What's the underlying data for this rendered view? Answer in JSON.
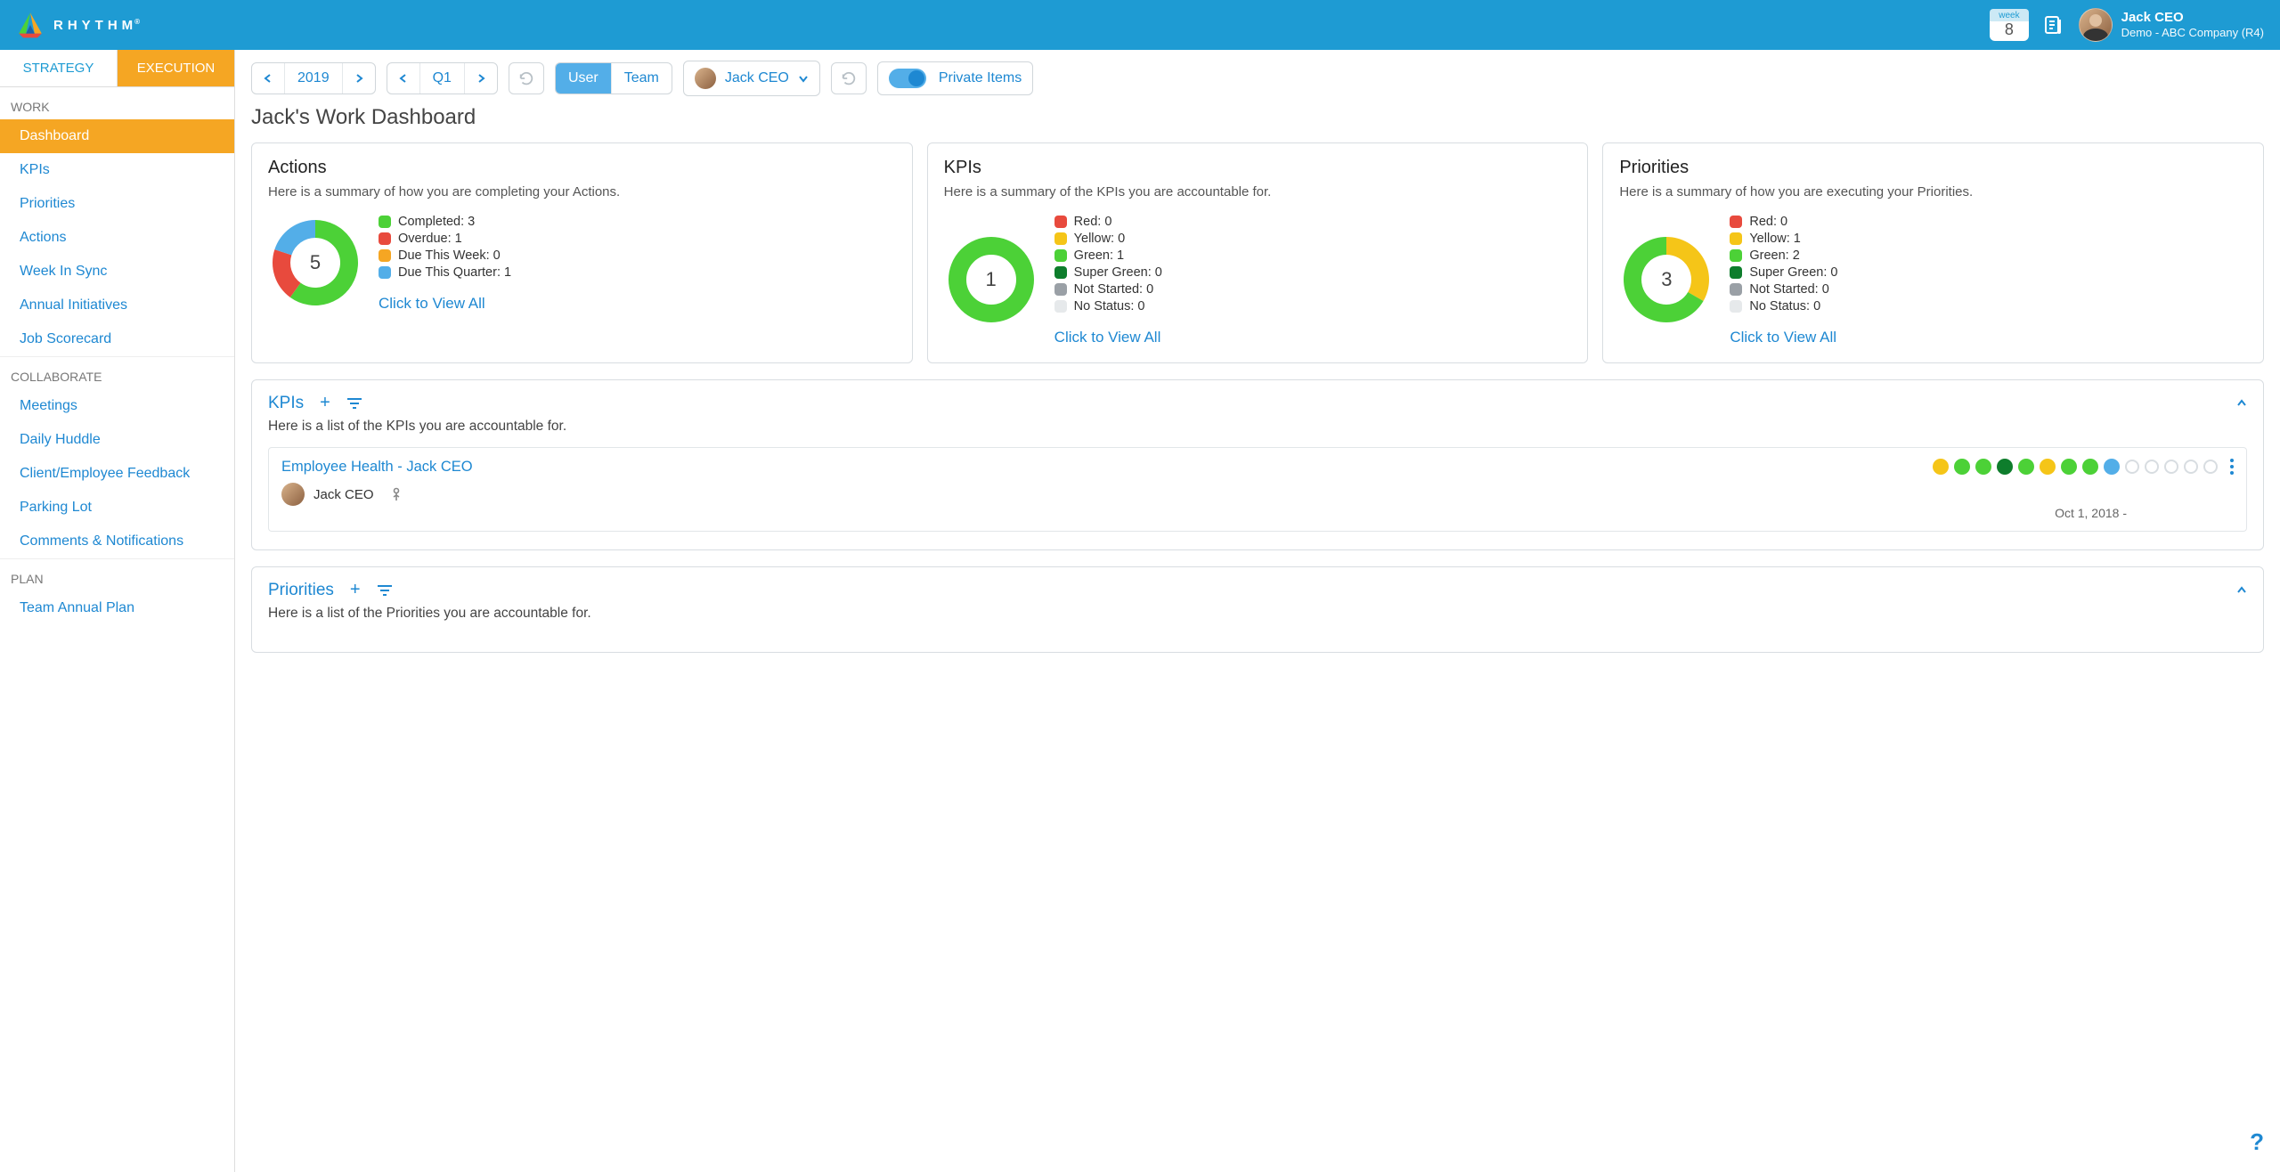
{
  "colors": {
    "brand_blue": "#1e9bd3",
    "link_blue": "#1e88d2",
    "orange": "#f5a623",
    "green": "#4cd137",
    "dark_green": "#0e7d2c",
    "red": "#e84a3d",
    "yellow": "#f5c518",
    "sky": "#53aee8",
    "grey": "#9aa0a6",
    "empty_ring": "#e6e9eb"
  },
  "topbar": {
    "brand": "RHYTHM",
    "week_label": "week",
    "week_number": "8",
    "user_name": "Jack CEO",
    "user_company": "Demo - ABC Company (R4)"
  },
  "sidebar": {
    "tabs": {
      "strategy": "STRATEGY",
      "execution": "EXECUTION"
    },
    "sections": [
      {
        "label": "WORK",
        "items": [
          "Dashboard",
          "KPIs",
          "Priorities",
          "Actions",
          "Week In Sync",
          "Annual Initiatives",
          "Job Scorecard"
        ],
        "active": "Dashboard"
      },
      {
        "label": "COLLABORATE",
        "items": [
          "Meetings",
          "Daily Huddle",
          "Client/Employee Feedback",
          "Parking Lot",
          "Comments & Notifications"
        ]
      },
      {
        "label": "PLAN",
        "items": [
          "Team Annual Plan"
        ]
      }
    ]
  },
  "toolbar": {
    "year": "2019",
    "quarter": "Q1",
    "scope_user": "User",
    "scope_team": "Team",
    "person": "Jack CEO",
    "private_label": "Private Items"
  },
  "page_title": "Jack's Work Dashboard",
  "cards": {
    "actions": {
      "title": "Actions",
      "subtitle": "Here is a summary of how you are completing your Actions.",
      "total": "5",
      "view_all": "Click to View All",
      "chart": {
        "type": "donut",
        "slices": [
          {
            "label": "Completed",
            "value": 3,
            "color": "#4cd137"
          },
          {
            "label": "Overdue",
            "value": 1,
            "color": "#e84a3d"
          },
          {
            "label": "Due This Week",
            "value": 0,
            "color": "#f5a623"
          },
          {
            "label": "Due This Quarter",
            "value": 1,
            "color": "#53aee8"
          }
        ]
      }
    },
    "kpis": {
      "title": "KPIs",
      "subtitle": "Here is a summary of the KPIs you are accountable for.",
      "total": "1",
      "view_all": "Click to View All",
      "chart": {
        "type": "donut",
        "slices": [
          {
            "label": "Red",
            "value": 0,
            "color": "#e84a3d"
          },
          {
            "label": "Yellow",
            "value": 0,
            "color": "#f5c518"
          },
          {
            "label": "Green",
            "value": 1,
            "color": "#4cd137"
          },
          {
            "label": "Super Green",
            "value": 0,
            "color": "#0e7d2c"
          },
          {
            "label": "Not Started",
            "value": 0,
            "color": "#9aa0a6"
          },
          {
            "label": "No Status",
            "value": 0,
            "color": "#e6e9eb"
          }
        ]
      }
    },
    "priorities": {
      "title": "Priorities",
      "subtitle": "Here is a summary of how you are executing your Priorities.",
      "total": "3",
      "view_all": "Click to View All",
      "chart": {
        "type": "donut",
        "slices": [
          {
            "label": "Red",
            "value": 0,
            "color": "#e84a3d"
          },
          {
            "label": "Yellow",
            "value": 1,
            "color": "#f5c518"
          },
          {
            "label": "Green",
            "value": 2,
            "color": "#4cd137"
          },
          {
            "label": "Super Green",
            "value": 0,
            "color": "#0e7d2c"
          },
          {
            "label": "Not Started",
            "value": 0,
            "color": "#9aa0a6"
          },
          {
            "label": "No Status",
            "value": 0,
            "color": "#e6e9eb"
          }
        ]
      }
    }
  },
  "kpi_panel": {
    "title": "KPIs",
    "subtitle": "Here is a list of the KPIs you are accountable for.",
    "item": {
      "title": "Employee Health - Jack CEO",
      "owner": "Jack CEO",
      "date": "Oct 1, 2018 -",
      "status_dots": [
        "#f5c518",
        "#4cd137",
        "#4cd137",
        "#0e7d2c",
        "#4cd137",
        "#f5c518",
        "#4cd137",
        "#4cd137",
        "#53aee8",
        "empty",
        "empty",
        "empty",
        "empty",
        "empty"
      ]
    }
  },
  "priorities_panel": {
    "title": "Priorities",
    "subtitle": "Here is a list of the Priorities you are accountable for."
  }
}
